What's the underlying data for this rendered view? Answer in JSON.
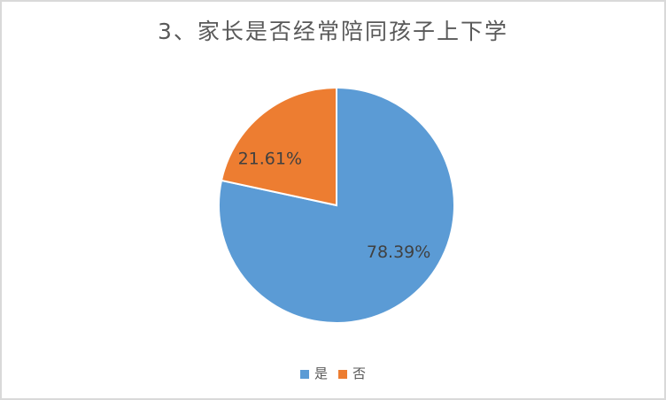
{
  "chart_data": {
    "type": "pie",
    "title": "3、家长是否经常陪同孩子上下学",
    "slices": [
      {
        "label": "是",
        "value": 78.39,
        "display_label": "78.39%",
        "color": "#5B9BD5",
        "label_angle": 127,
        "label_radius_frac": 0.66
      },
      {
        "label": "否",
        "value": 21.61,
        "display_label": "21.61%",
        "color": "#ED7D31",
        "label_angle": 305,
        "label_radius_frac": 0.69
      }
    ],
    "start_angle": 0,
    "direction": "clockwise",
    "legend_position": "bottom",
    "title_color": "#595959",
    "data_label_color": "#404040",
    "legend_text_color": "#595959",
    "slice_border_color": "#FFFFFF",
    "background_color": "#FFFFFF",
    "frame_border_color": "#D9D9D9"
  }
}
